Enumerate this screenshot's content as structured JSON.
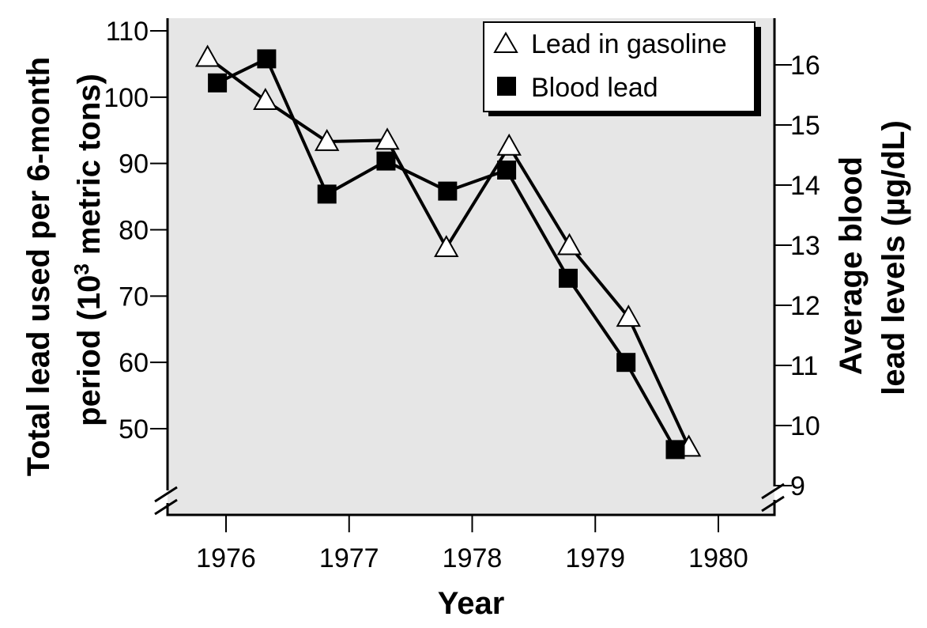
{
  "chart_data": {
    "type": "line",
    "title": "",
    "xlabel": "Year",
    "ylabel_left": "Total lead used per 6-month period (10^3 metric tons)",
    "ylabel_left_lines": [
      "Total lead used per 6-month",
      "period (10",
      "3",
      " metric tons)"
    ],
    "ylabel_right": "Average blood lead levels (µg/dL)",
    "ylabel_right_lines": [
      "Average blood",
      "lead levels (µg/dL)"
    ],
    "x_ticks": [
      1976,
      1977,
      1978,
      1979,
      1980
    ],
    "x_range": [
      1975.58,
      1980.45
    ],
    "y_left_ticks": [
      50,
      60,
      70,
      80,
      90,
      100,
      110
    ],
    "y_left_range": [
      40.8,
      111.9
    ],
    "y_right_ticks": [
      9,
      10,
      11,
      12,
      13,
      14,
      15,
      16
    ],
    "y_right_range": [
      8.5,
      16.8
    ],
    "axis_breaks": true,
    "grid": false,
    "legend_position": "upper right",
    "background": "#e6e6e6",
    "series": [
      {
        "name": "Lead in gasoline",
        "axis": "left",
        "marker": "open-triangle",
        "x": [
          1975.85,
          1976.32,
          1976.82,
          1977.31,
          1977.79,
          1978.3,
          1978.79,
          1979.27,
          1979.76
        ],
        "values": [
          106,
          99.5,
          93.3,
          93.5,
          77.3,
          92.6,
          77.6,
          66.8,
          47.2
        ]
      },
      {
        "name": "Blood lead",
        "axis": "right",
        "marker": "filled-square",
        "x": [
          1975.93,
          1976.33,
          1976.82,
          1977.3,
          1977.8,
          1978.28,
          1978.78,
          1979.25,
          1979.65
        ],
        "values": [
          15.7,
          16.1,
          13.85,
          14.4,
          13.9,
          14.25,
          12.45,
          11.05,
          9.6
        ]
      }
    ]
  },
  "legend": {
    "items": [
      {
        "label": "Lead in gasoline",
        "marker": "open-triangle"
      },
      {
        "label": "Blood lead",
        "marker": "filled-square"
      }
    ]
  },
  "colors": {
    "plot_background": "#e6e6e6",
    "ink": "#000000",
    "marker_fill_open": "#ffffff"
  }
}
